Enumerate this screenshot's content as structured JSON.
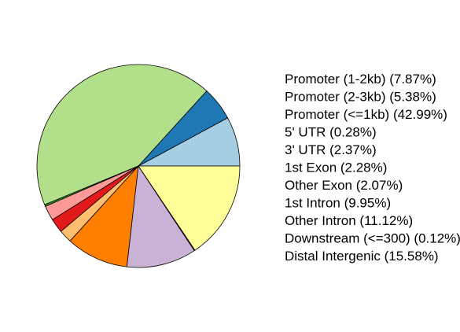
{
  "chart_data": {
    "type": "pie",
    "title": "",
    "slices": [
      {
        "label": "Promoter (1-2kb) (7.87%)",
        "name": "Promoter (1-2kb)",
        "value": 7.87,
        "color": "#A6CEE3"
      },
      {
        "label": "Promoter (2-3kb) (5.38%)",
        "name": "Promoter (2-3kb)",
        "value": 5.38,
        "color": "#1F78B4"
      },
      {
        "label": "Promoter (<=1kb) (42.99%)",
        "name": "Promoter (<=1kb)",
        "value": 42.99,
        "color": "#B2DF8A"
      },
      {
        "label": "5' UTR (0.28%)",
        "name": "5' UTR",
        "value": 0.28,
        "color": "#33A02C"
      },
      {
        "label": "3' UTR (2.37%)",
        "name": "3' UTR",
        "value": 2.37,
        "color": "#FB9A99"
      },
      {
        "label": "1st Exon (2.28%)",
        "name": "1st Exon",
        "value": 2.28,
        "color": "#E31A1C"
      },
      {
        "label": "Other Exon (2.07%)",
        "name": "Other Exon",
        "value": 2.07,
        "color": "#FDBF6F"
      },
      {
        "label": "1st Intron (9.95%)",
        "name": "1st Intron",
        "value": 9.95,
        "color": "#FF7F00"
      },
      {
        "label": "Other Intron (11.12%)",
        "name": "Other Intron",
        "value": 11.12,
        "color": "#CAB2D6"
      },
      {
        "label": "Downstream (<=300) (0.12%)",
        "name": "Downstream (<=300)",
        "value": 0.12,
        "color": "#6A3D9A"
      },
      {
        "label": "Distal Intergenic (15.58%)",
        "name": "Distal Intergenic",
        "value": 15.58,
        "color": "#FFFF99"
      }
    ],
    "start_angle": "0° (east), counter-clockwise",
    "legend_position": "right",
    "legend_symbols": false
  }
}
